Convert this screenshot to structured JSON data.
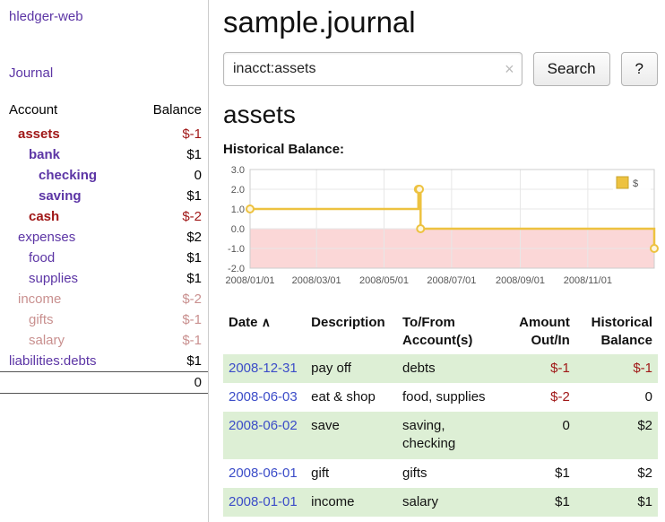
{
  "colors": {
    "link_purple": "#5c35a5",
    "negative_red": "#a01818",
    "dimmed_rose": "#c9908f",
    "row_green": "#ddefd5",
    "chart_series": "#edc240",
    "chart_negative_band": "#fbd7d7",
    "register_date_blue": "#3b4cc8"
  },
  "sidebar": {
    "brand": "hledger-web",
    "journal_link": "Journal",
    "accounts": {
      "col_account": "Account",
      "col_balance": "Balance",
      "rows": [
        {
          "name": "assets",
          "balance": "$-1"
        },
        {
          "name": "bank",
          "balance": "$1"
        },
        {
          "name": "checking",
          "balance": "0"
        },
        {
          "name": "saving",
          "balance": "$1"
        },
        {
          "name": "cash",
          "balance": "$-2"
        },
        {
          "name": "expenses",
          "balance": "$2"
        },
        {
          "name": "food",
          "balance": "$1"
        },
        {
          "name": "supplies",
          "balance": "$1"
        },
        {
          "name": "income",
          "balance": "$-2"
        },
        {
          "name": "gifts",
          "balance": "$-1"
        },
        {
          "name": "salary",
          "balance": "$-1"
        },
        {
          "name": "liabilities:debts",
          "balance": "$1"
        }
      ],
      "total": "0"
    }
  },
  "main": {
    "title": "sample.journal",
    "search": {
      "value": "inacct:assets",
      "clear_icon": "×",
      "button": "Search",
      "help_button": "?"
    },
    "account_heading": "assets",
    "chart_title": "Historical Balance:",
    "register": {
      "headers": {
        "date": "Date",
        "sort": "∧",
        "description": "Description",
        "tofrom": "To/From\nAccount(s)",
        "amount": "Amount\nOut/In",
        "balance": "Historical\nBalance"
      },
      "rows": [
        {
          "date": "2008-12-31",
          "description": "pay off",
          "tofrom": "debts",
          "amount": "$-1",
          "amount_neg": true,
          "balance": "$-1",
          "balance_neg": true
        },
        {
          "date": "2008-06-03",
          "description": "eat & shop",
          "tofrom": "food, supplies",
          "amount": "$-2",
          "amount_neg": true,
          "balance": "0",
          "balance_neg": false
        },
        {
          "date": "2008-06-02",
          "description": "save",
          "tofrom": "saving,\nchecking",
          "amount": "0",
          "amount_neg": false,
          "balance": "$2",
          "balance_neg": false
        },
        {
          "date": "2008-06-01",
          "description": "gift",
          "tofrom": "gifts",
          "amount": "$1",
          "amount_neg": false,
          "balance": "$2",
          "balance_neg": false
        },
        {
          "date": "2008-01-01",
          "description": "income",
          "tofrom": "salary",
          "amount": "$1",
          "amount_neg": false,
          "balance": "$1",
          "balance_neg": false
        }
      ]
    }
  },
  "chart_data": {
    "type": "line",
    "title": "Historical Balance:",
    "step": true,
    "legend": [
      {
        "label": "$",
        "color": "#edc240"
      }
    ],
    "legend_position": "top-right",
    "grid": true,
    "ylim": [
      -2,
      3
    ],
    "y_ticks": [
      3,
      2,
      1,
      0,
      -1,
      -2
    ],
    "x_range": [
      "2008-01-01",
      "2008-12-31"
    ],
    "x_ticks": [
      "2008/01/01",
      "2008/03/01",
      "2008/05/01",
      "2008/07/01",
      "2008/09/01",
      "2008/11/01"
    ],
    "points": [
      {
        "date": "2008-01-01",
        "value": 1
      },
      {
        "date": "2008-06-01",
        "value": 2
      },
      {
        "date": "2008-06-02",
        "value": 2
      },
      {
        "date": "2008-06-03",
        "value": 0
      },
      {
        "date": "2008-12-31",
        "value": -1
      }
    ],
    "negative_region": {
      "from": -2,
      "to": 0,
      "color": "#fbd7d7"
    }
  }
}
